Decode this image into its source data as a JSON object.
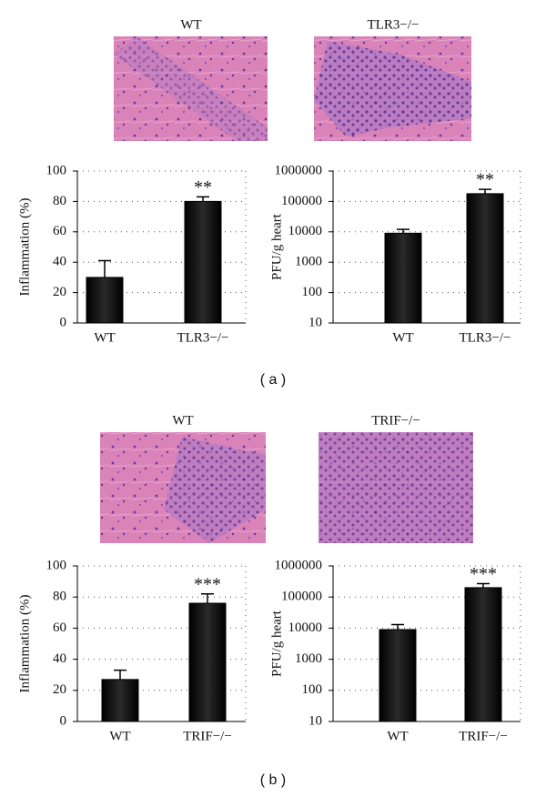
{
  "panels": [
    {
      "label": "( a )",
      "images": [
        {
          "title": "WT"
        },
        {
          "title": "TLR3−/−"
        }
      ]
    },
    {
      "label": "( b )",
      "images": [
        {
          "title": "WT"
        },
        {
          "title": "TRIF−/−"
        }
      ]
    }
  ],
  "chart_data": [
    {
      "type": "bar",
      "ylabel": "Inflammation (%)",
      "categories": [
        "WT",
        "TLR3−/−"
      ],
      "values": [
        30,
        80
      ],
      "errors": [
        11,
        3
      ],
      "significance": [
        null,
        "**"
      ],
      "color": "#000000",
      "ylim": [
        0,
        100
      ],
      "yticks": [
        0,
        20,
        40,
        60,
        80,
        100
      ],
      "grid": true,
      "log": false
    },
    {
      "type": "bar",
      "ylabel": "PFU/g heart",
      "categories": [
        "WT",
        "TLR3−/−"
      ],
      "values": [
        9000,
        180000
      ],
      "errors": [
        3000,
        70000
      ],
      "significance": [
        null,
        "**"
      ],
      "color": "#000000",
      "ylim": [
        10,
        1000000
      ],
      "yticks": [
        10,
        100,
        1000,
        10000,
        100000,
        1000000
      ],
      "grid": true,
      "log": true
    },
    {
      "type": "bar",
      "ylabel": "Inflammation (%)",
      "categories": [
        "WT",
        "TRIF−/−"
      ],
      "values": [
        27,
        76
      ],
      "errors": [
        6,
        6
      ],
      "significance": [
        null,
        "***"
      ],
      "color": "#000000",
      "ylim": [
        0,
        100
      ],
      "yticks": [
        0,
        20,
        40,
        60,
        80,
        100
      ],
      "grid": true,
      "log": false
    },
    {
      "type": "bar",
      "ylabel": "PFU/g heart",
      "categories": [
        "WT",
        "TRIF−/−"
      ],
      "values": [
        9000,
        200000
      ],
      "errors": [
        4000,
        70000
      ],
      "significance": [
        null,
        "***"
      ],
      "color": "#000000",
      "ylim": [
        10,
        1000000
      ],
      "yticks": [
        10,
        100,
        1000,
        10000,
        100000,
        1000000
      ],
      "grid": true,
      "log": true
    }
  ]
}
